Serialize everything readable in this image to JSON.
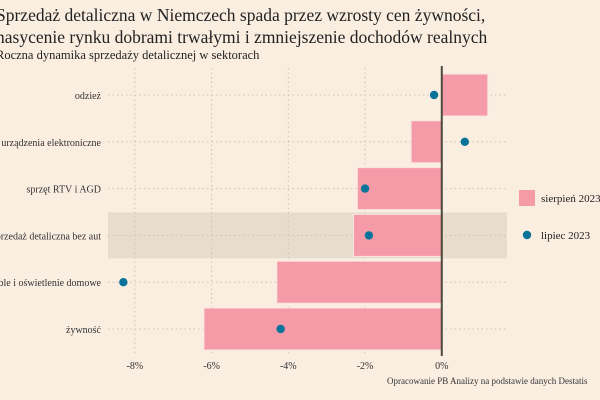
{
  "title_line1": "Sprzedaż detaliczna w Niemczech spada przez wzrosty cen żywności,",
  "title_line2": "nasycenie rynku dobrami trwałymi i zmniejszenie dochodów realnych",
  "subtitle": "Roczna dynamika sprzedaży detalicznej w sektorach",
  "caption": "Opracowanie PB Analizy na podstawie danych Destatis",
  "colors": {
    "background": "#faeee1",
    "bar": "#f59ba8",
    "dot": "#0a7399",
    "highlight": "#e8dccd",
    "zero_line": "#4a4a3a"
  },
  "chart_data": {
    "type": "bar",
    "orientation": "horizontal",
    "categories": [
      "odzież",
      "urządzenia elektroniczne",
      "sprzęt RTV i AGD",
      "sprzedaż detaliczna bez aut",
      "meble i oświetlenie domowe",
      "żywność"
    ],
    "highlighted_category": "sprzedaż detaliczna bez aut",
    "series": [
      {
        "name": "sierpień 2023",
        "mark": "bar",
        "values": [
          1.2,
          -0.8,
          -2.2,
          -2.3,
          -4.3,
          -6.2
        ]
      },
      {
        "name": "lipiec 2023",
        "mark": "dot",
        "values": [
          -0.2,
          0.6,
          -2.0,
          -1.9,
          -8.3,
          -4.2
        ]
      }
    ],
    "xlim": [
      -8.7,
      1.7
    ],
    "xticks": [
      -8,
      -6,
      -4,
      -2,
      0
    ],
    "xtick_labels": [
      "-8%",
      "-6%",
      "-4%",
      "-2%",
      "0%"
    ],
    "grid": "dotted",
    "legend": "right"
  }
}
